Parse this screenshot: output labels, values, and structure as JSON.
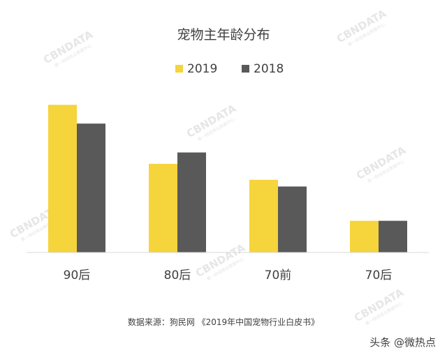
{
  "colors": {
    "series_2019": "#F5D43C",
    "series_2018": "#595959",
    "axis": "#D9D9D9",
    "text": "#404040",
    "watermark": "#E6E6E6"
  },
  "watermark": {
    "brand": "CBNDATA",
    "tagline": "第一财经商业数据中心"
  },
  "source_text": "数据来源：狗民网 《2019年中国宠物行业白皮书》",
  "footer_credit": "头条 @微热点",
  "chart_data": {
    "type": "bar",
    "title": "宠物主年龄分布",
    "categories": [
      "90后",
      "80后",
      "70前",
      "70后"
    ],
    "series": [
      {
        "name": "2019",
        "values": [
          37.8,
          22.7,
          18.6,
          8.1
        ],
        "color": "#F5D43C"
      },
      {
        "name": "2018",
        "values": [
          33.0,
          25.6,
          16.9,
          8.1
        ],
        "color": "#595959"
      }
    ],
    "ylim": [
      0,
      40
    ],
    "xlabel": "",
    "ylabel": "",
    "grid": false,
    "legend": "top-center"
  }
}
